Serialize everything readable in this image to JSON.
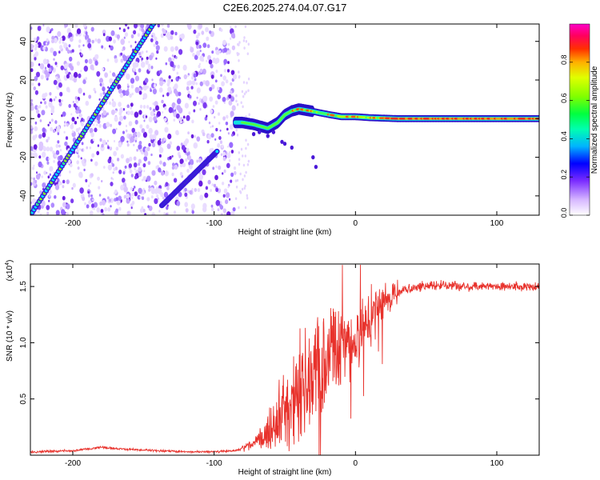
{
  "title": "C2E6.2025.274.04.07.G17",
  "chart_data": [
    {
      "type": "heatmap",
      "name": "spectrogram",
      "xlabel": "Height of straight line (km)",
      "ylabel": "Frequency (Hz)",
      "xlim": [
        -230,
        130
      ],
      "ylim": [
        -50,
        49
      ],
      "xticks": [
        -200,
        -100,
        0,
        100
      ],
      "xtick_labels": [
        "-200",
        "-100",
        "0",
        "100"
      ],
      "yticks": [
        -40,
        -20,
        0,
        20,
        40
      ],
      "ytick_labels": [
        "-40",
        "-20",
        "0",
        "20",
        "40"
      ],
      "colorbar": {
        "label": "Normalized spectral amplitude",
        "range": [
          0,
          1
        ],
        "ticks": [
          0.0,
          0.2,
          0.4,
          0.6,
          0.8
        ],
        "tick_labels": [
          "0.0",
          "0.2",
          "0.4",
          "0.6",
          "0.8"
        ],
        "colors": [
          "#f0e6ff",
          "#a070ff",
          "#6020e0",
          "#0000ff",
          "#00c8ff",
          "#00ff80",
          "#40ff00",
          "#c0ff00",
          "#ffff00",
          "#ff8000",
          "#ff0000",
          "#ff00a0"
        ]
      },
      "features": [
        {
          "name": "diagonal-track-1",
          "x": [
            -230,
            -143
          ],
          "y": [
            -50,
            49
          ]
        },
        {
          "name": "diagonal-track-2",
          "x": [
            -137,
            -98
          ],
          "y": [
            -45,
            -17
          ]
        },
        {
          "name": "main-carrier",
          "x": [
            -85,
            130
          ],
          "y": [
            0,
            0
          ]
        }
      ]
    },
    {
      "type": "line",
      "name": "snr",
      "xlabel": "Height of straight line (km)",
      "ylabel": "SNR (10 * v/v)",
      "yscale_label": "(x10",
      "yscale_exp": "4",
      "xlim": [
        -230,
        130
      ],
      "ylim": [
        0,
        1.7
      ],
      "xticks": [
        -200,
        -100,
        0,
        100
      ],
      "xtick_labels": [
        "-200",
        "-100",
        "0",
        "100"
      ],
      "yticks": [
        0.5,
        1.0,
        1.5
      ],
      "ytick_labels": [
        "0.5",
        "1.0",
        "1.5"
      ],
      "color": "#e8322c",
      "trend": {
        "x": [
          -230,
          -200,
          -180,
          -160,
          -140,
          -120,
          -100,
          -85,
          -75,
          -65,
          -55,
          -45,
          -35,
          -25,
          -15,
          -5,
          5,
          15,
          25,
          35,
          45,
          60,
          80,
          100,
          130
        ],
        "y": [
          0.03,
          0.04,
          0.07,
          0.05,
          0.04,
          0.03,
          0.03,
          0.04,
          0.08,
          0.18,
          0.3,
          0.48,
          0.62,
          0.75,
          0.88,
          1.0,
          1.12,
          1.28,
          1.4,
          1.48,
          1.5,
          1.51,
          1.5,
          1.5,
          1.5
        ]
      }
    }
  ]
}
